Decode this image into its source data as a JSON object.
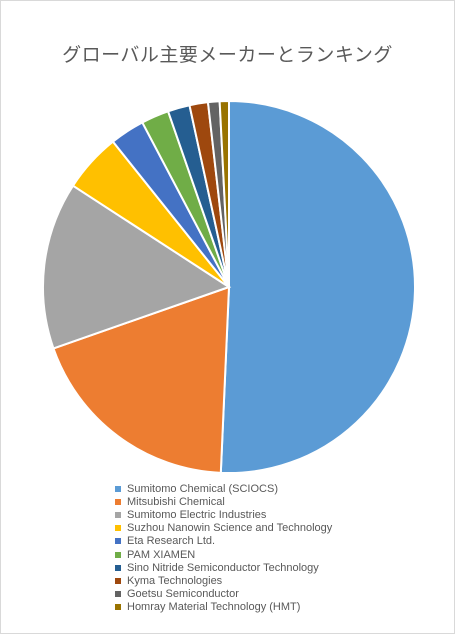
{
  "chart_data": {
    "type": "pie",
    "title": "グローバル主要メーカーとランキング",
    "legend_position": "bottom",
    "series": [
      {
        "name": "Sumitomo Chemical (SCIOCS)",
        "value": 50.6,
        "color": "#5b9bd5"
      },
      {
        "name": "Mitsubishi Chemical",
        "value": 18.9,
        "color": "#ed7d31"
      },
      {
        "name": "Sumitomo Electric Industries",
        "value": 14.5,
        "color": "#a5a5a5"
      },
      {
        "name": "Suzhou Nanowin Science and Technology",
        "value": 5.1,
        "color": "#ffc000"
      },
      {
        "name": "Eta Research Ltd.",
        "value": 3.0,
        "color": "#4472c4"
      },
      {
        "name": "PAM XIAMEN",
        "value": 2.4,
        "color": "#70ad47"
      },
      {
        "name": "Sino Nitride Semiconductor Technology",
        "value": 1.9,
        "color": "#255e91"
      },
      {
        "name": "Kyma Technologies",
        "value": 1.6,
        "color": "#9e480e"
      },
      {
        "name": "Goetsu Semiconductor",
        "value": 1.0,
        "color": "#636363"
      },
      {
        "name": "Homray Material Technology (HMT)",
        "value": 0.8,
        "color": "#997300"
      }
    ]
  }
}
